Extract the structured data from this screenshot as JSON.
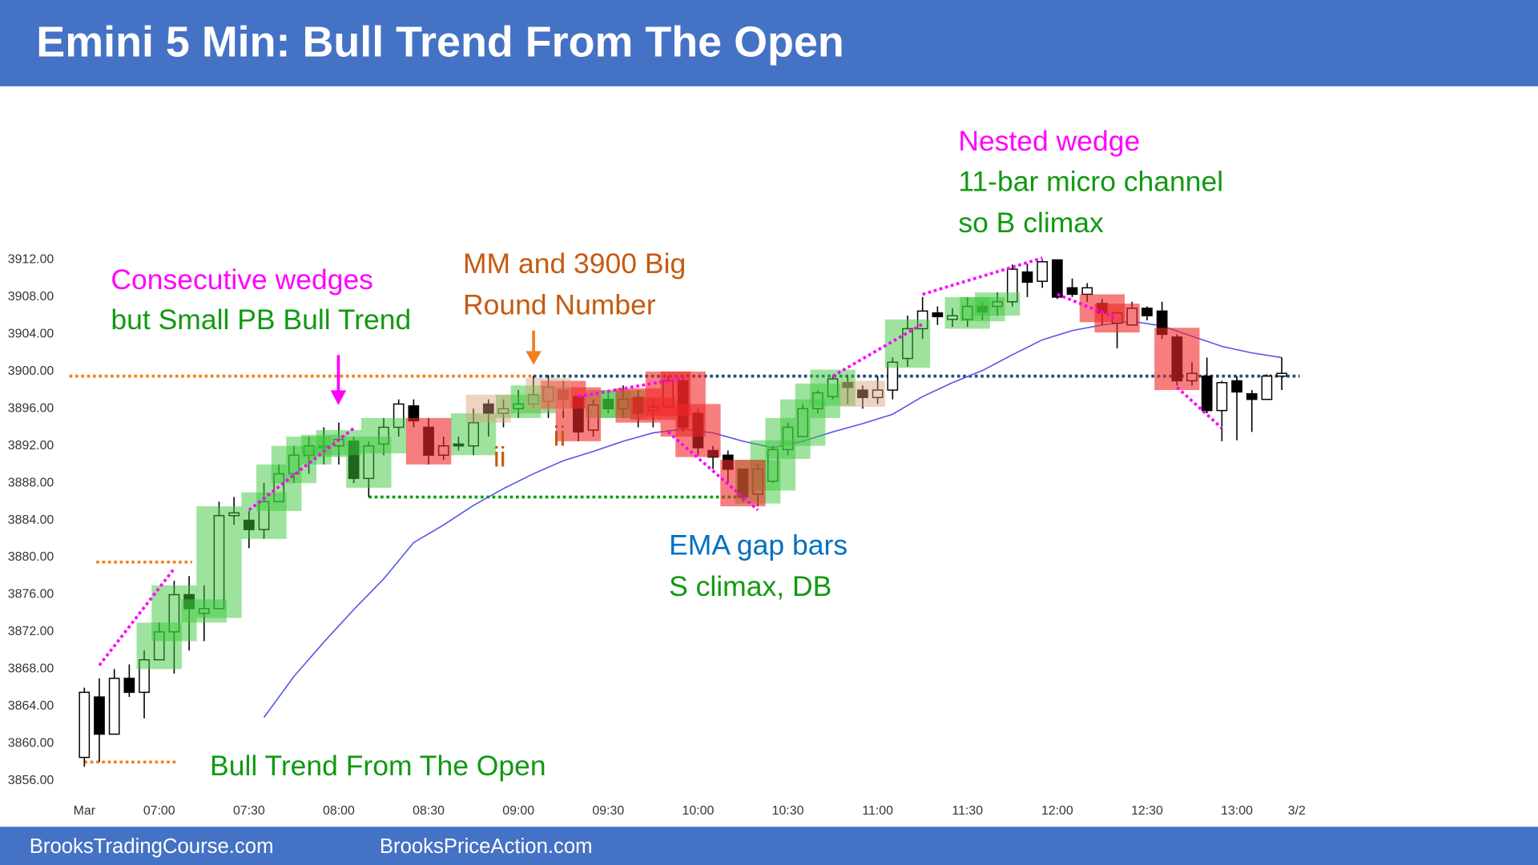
{
  "chart_data": {
    "type": "candlestick",
    "title": "Emini 5 Min: Bull Trend From The Open",
    "x": [
      395,
      400,
      405,
      410,
      415,
      420,
      425,
      430,
      435,
      440,
      445,
      450,
      455,
      460,
      465,
      470,
      475,
      480,
      485,
      490,
      495,
      500,
      505,
      510,
      515,
      520,
      525,
      530,
      535,
      540,
      545,
      550,
      555,
      560,
      565,
      570,
      575,
      580,
      585,
      590,
      595,
      600,
      605,
      610,
      615,
      620,
      625,
      630,
      635,
      640,
      645,
      650,
      655,
      660,
      665,
      670,
      675,
      680,
      685,
      690,
      695,
      700,
      705,
      710,
      715,
      720,
      725,
      730,
      735,
      740,
      745,
      750,
      755,
      760,
      765,
      770,
      775,
      780,
      785,
      790,
      795
    ],
    "open": [
      3858.5,
      3865,
      3861,
      3867,
      3865.5,
      3869,
      3872,
      3876,
      3874,
      3874.5,
      3884.5,
      3884,
      3883,
      3886,
      3889,
      3891,
      3891.8,
      3892,
      3892.5,
      3888.5,
      3892.2,
      3894,
      3896.3,
      3894,
      3891,
      3892.2,
      3892,
      3896.5,
      3895.5,
      3896,
      3896.5,
      3896.8,
      3898,
      3897.3,
      3893.7,
      3897,
      3896,
      3897.2,
      3895.8,
      3896.2,
      3899,
      3895.5,
      3891.5,
      3891,
      3889.5,
      3886.8,
      3888.2,
      3891.6,
      3893,
      3896,
      3897.3,
      3898.8,
      3898,
      3897.2,
      3898,
      3901.4,
      3904.6,
      3906.3,
      3905.6,
      3905.6,
      3907,
      3907,
      3907.5,
      3910.7,
      3909.7,
      3912,
      3909,
      3908.3,
      3907.3,
      3905.2,
      3905,
      3906.8,
      3906.5,
      3903.7,
      3899,
      3899.5,
      3895.8,
      3899,
      3897.6,
      3897,
      3899.5
    ],
    "high": [
      3866,
      3867,
      3868,
      3868.5,
      3870,
      3873,
      3877.5,
      3878,
      3877,
      3886,
      3886.5,
      3885,
      3888,
      3890,
      3892,
      3893,
      3894,
      3894.5,
      3893,
      3892.5,
      3895,
      3897,
      3897,
      3895,
      3893,
      3893,
      3896,
      3897,
      3897,
      3898,
      3899.5,
      3899.6,
      3899,
      3897.5,
      3897,
      3898,
      3898.5,
      3898,
      3897,
      3899.5,
      3899.5,
      3896,
      3892,
      3891.5,
      3889.5,
      3890,
      3892,
      3894.5,
      3896.5,
      3898,
      3899.5,
      3899.6,
      3898.5,
      3899.5,
      3901.5,
      3906,
      3908,
      3907,
      3906.8,
      3908,
      3907.5,
      3908.5,
      3911.5,
      3911.6,
      3912,
      3912,
      3910,
      3909.5,
      3907.8,
      3906.5,
      3907.5,
      3907,
      3907.5,
      3904,
      3901,
      3901.5,
      3899,
      3899.5,
      3898,
      3899.7,
      3901.5
    ],
    "low": [
      3857.5,
      3858,
      3861,
      3865,
      3862.7,
      3869,
      3867.5,
      3870,
      3871,
      3874.5,
      3883.5,
      3881,
      3882,
      3886,
      3888,
      3889,
      3890,
      3890,
      3888,
      3886.5,
      3891,
      3893,
      3894,
      3890,
      3890.5,
      3891.5,
      3891,
      3893,
      3894,
      3895,
      3896,
      3895,
      3895,
      3892.5,
      3893,
      3895.5,
      3895,
      3894,
      3894,
      3896,
      3893.5,
      3891,
      3889.5,
      3888,
      3886,
      3885.5,
      3888,
      3891,
      3893,
      3895.5,
      3897,
      3896.5,
      3896,
      3896.5,
      3897,
      3900.5,
      3903.5,
      3905,
      3904.8,
      3904.8,
      3905.5,
      3906,
      3907,
      3908,
      3909,
      3907.8,
      3908,
      3907.5,
      3905,
      3902.5,
      3905,
      3905.5,
      3903.5,
      3898.5,
      3898.5,
      3895.5,
      3892.5,
      3892.6,
      3893.5,
      3897,
      3898
    ],
    "close": [
      3865.5,
      3861,
      3867,
      3865.5,
      3869,
      3872,
      3876,
      3874.5,
      3874.5,
      3884.5,
      3884.8,
      3883,
      3886,
      3889,
      3891,
      3892,
      3892,
      3892.7,
      3888.5,
      3892,
      3894,
      3896.5,
      3894.7,
      3891,
      3892,
      3892,
      3894.5,
      3895.5,
      3896,
      3896.5,
      3897.5,
      3898.3,
      3897,
      3893.5,
      3896.4,
      3896,
      3897,
      3895.5,
      3896.2,
      3899,
      3894,
      3891.8,
      3890.8,
      3889.5,
      3886.5,
      3889.5,
      3891.6,
      3894,
      3896,
      3897.7,
      3899.2,
      3898.3,
      3897.2,
      3898,
      3901,
      3904.6,
      3906.5,
      3905.9,
      3906,
      3907,
      3906.4,
      3907.5,
      3911,
      3909.6,
      3911.8,
      3908,
      3908.3,
      3909,
      3906.3,
      3906.3,
      3906.8,
      3906,
      3904,
      3899,
      3899.8,
      3895.8,
      3898.8,
      3897.8,
      3897,
      3899.5,
      3899.8
    ],
    "xlim": [
      390,
      805
    ],
    "ylim": [
      3854,
      3914
    ],
    "xticks": [
      {
        "value": 395,
        "label": "Mar"
      },
      {
        "value": 420,
        "label": "07:00"
      },
      {
        "value": 450,
        "label": "07:30"
      },
      {
        "value": 480,
        "label": "08:00"
      },
      {
        "value": 510,
        "label": "08:30"
      },
      {
        "value": 540,
        "label": "09:00"
      },
      {
        "value": 570,
        "label": "09:30"
      },
      {
        "value": 600,
        "label": "10:00"
      },
      {
        "value": 630,
        "label": "10:30"
      },
      {
        "value": 660,
        "label": "11:00"
      },
      {
        "value": 690,
        "label": "11:30"
      },
      {
        "value": 720,
        "label": "12:00"
      },
      {
        "value": 750,
        "label": "12:30"
      },
      {
        "value": 780,
        "label": "13:00"
      },
      {
        "value": 800,
        "label": "3/2"
      }
    ],
    "yticks": [
      {
        "value": 3856,
        "label": "3856.00"
      },
      {
        "value": 3860,
        "label": "3860.00"
      },
      {
        "value": 3864,
        "label": "3864.00"
      },
      {
        "value": 3868,
        "label": "3868.00"
      },
      {
        "value": 3872,
        "label": "3872.00"
      },
      {
        "value": 3876,
        "label": "3876.00"
      },
      {
        "value": 3880,
        "label": "3880.00"
      },
      {
        "value": 3884,
        "label": "3884.00"
      },
      {
        "value": 3888,
        "label": "3888.00"
      },
      {
        "value": 3892,
        "label": "3892.00"
      },
      {
        "value": 3896,
        "label": "3896.00"
      },
      {
        "value": 3900,
        "label": "3900.00"
      },
      {
        "value": 3904,
        "label": "3904.00"
      },
      {
        "value": 3908,
        "label": "3908.00"
      },
      {
        "value": 3912,
        "label": "3912.00"
      }
    ],
    "ema": {
      "color": "#5555e6",
      "x": [
        455,
        465,
        475,
        485,
        495,
        505,
        515,
        525,
        535,
        545,
        555,
        565,
        575,
        585,
        595,
        605,
        615,
        625,
        635,
        645,
        655,
        665,
        675,
        685,
        695,
        705,
        715,
        725,
        735,
        745,
        755,
        765,
        775,
        785,
        795
      ],
      "values": [
        3862.8,
        3867.2,
        3870.9,
        3874.4,
        3877.7,
        3881.6,
        3883.5,
        3885.6,
        3887.4,
        3889,
        3890.4,
        3891.4,
        3892.5,
        3893.4,
        3893.8,
        3893.4,
        3892.5,
        3891.8,
        3892.5,
        3893.5,
        3894.4,
        3895.4,
        3897.3,
        3898.8,
        3900.1,
        3901.8,
        3903.4,
        3904.4,
        3905,
        3905.4,
        3904.9,
        3903.8,
        3902.7,
        3902,
        3901.5
      ]
    },
    "highlights": [
      {
        "color": "rgba(60,200,60,0.5)",
        "x": [
          420,
          425,
          435,
          440,
          455,
          460,
          465,
          470,
          475,
          480,
          490,
          495,
          525,
          540,
          545,
          570,
          575,
          620,
          625,
          630,
          635,
          640,
          645,
          670,
          690,
          695,
          700
        ]
      },
      {
        "color": "rgba(240,40,40,0.6)",
        "x": [
          510,
          555,
          560,
          580,
          585,
          590,
          595,
          600,
          615,
          735,
          740,
          760
        ]
      },
      {
        "color": "rgba(215,160,120,0.45)",
        "x": [
          530,
          550,
          655
        ]
      }
    ],
    "levels": [
      {
        "color": "#f08020",
        "x": [
          390,
          545
        ],
        "y": 3899.5
      },
      {
        "color": "#1f4e79",
        "x": [
          545,
          801
        ],
        "y": 3899.5
      },
      {
        "color": "#f08020",
        "x": [
          399,
          431
        ],
        "y": 3879.5
      },
      {
        "color": "#f08020",
        "x": [
          395,
          426
        ],
        "y": 3858
      },
      {
        "color": "#00a000",
        "x": [
          490,
          616
        ],
        "y": 3886.5
      }
    ],
    "wedge_color": "#ff00ff",
    "wedges": [
      {
        "x": [
          400,
          425
        ],
        "y": [
          3868.4,
          3878.8
        ]
      },
      {
        "x": [
          450,
          485
        ],
        "y": [
          3885.1,
          3893.9
        ]
      },
      {
        "x": [
          560,
          595
        ],
        "y": [
          3897.3,
          3899.3
        ]
      },
      {
        "x": [
          590,
          620
        ],
        "y": [
          3893.5,
          3885.1
        ]
      },
      {
        "x": [
          645,
          675
        ],
        "y": [
          3899.5,
          3905.1
        ]
      },
      {
        "x": [
          675,
          715
        ],
        "y": [
          3908.3,
          3912.2
        ]
      },
      {
        "x": [
          720,
          740
        ],
        "y": [
          3908.3,
          3905.7
        ]
      },
      {
        "x": [
          760,
          775
        ],
        "y": [
          3898.3,
          3893.9
        ]
      }
    ],
    "annotations": [
      {
        "text": "Consecutive wedges",
        "color": "#ff00ff"
      },
      {
        "text": "but Small PB Bull Trend",
        "color": "#119911"
      },
      {
        "text": "MM and 3900 Big",
        "color": "#c55a11"
      },
      {
        "text": "Round Number",
        "color": "#c55a11"
      },
      {
        "text": "ii",
        "color": "#c55a11"
      },
      {
        "text": "ii",
        "color": "#c55a11"
      },
      {
        "text": "Nested wedge",
        "color": "#ff00ff"
      },
      {
        "text": "11-bar micro channel",
        "color": "#119911"
      },
      {
        "text": "so B climax",
        "color": "#119911"
      },
      {
        "text": "EMA gap bars",
        "color": "#0070c0"
      },
      {
        "text": "S climax, DB",
        "color": "#119911"
      },
      {
        "text": "Bull Trend From The Open",
        "color": "#119911"
      }
    ]
  },
  "footer": [
    "BrooksTradingCourse.com",
    "BrooksPriceAction.com"
  ]
}
